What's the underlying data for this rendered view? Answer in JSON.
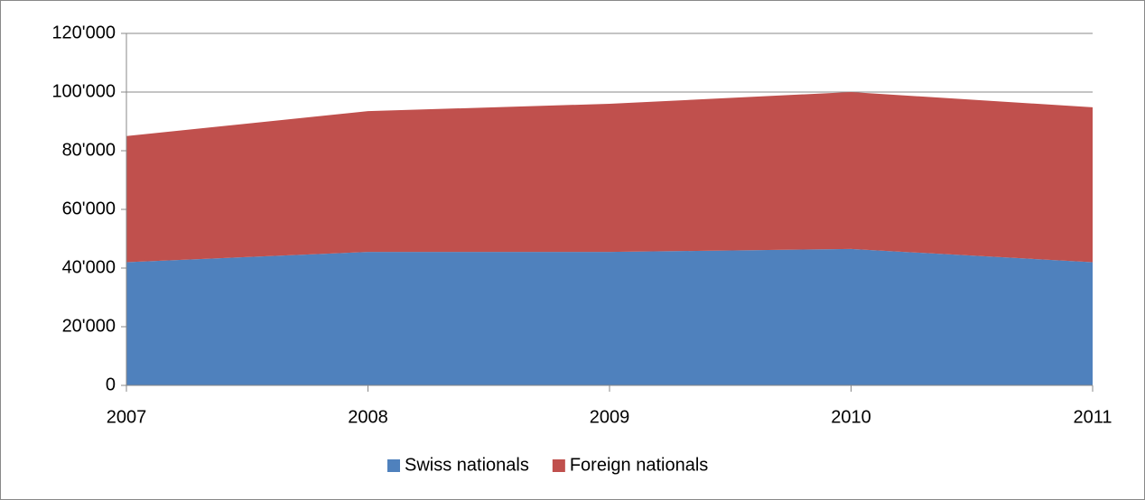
{
  "chart_data": {
    "type": "area",
    "stacked": true,
    "categories": [
      "2007",
      "2008",
      "2009",
      "2010",
      "2011"
    ],
    "series": [
      {
        "name": "Swiss nationals",
        "color": "#4f81bd",
        "values": [
          42000,
          45500,
          45500,
          46500,
          42000
        ]
      },
      {
        "name": "Foreign nationals",
        "color": "#c0504d",
        "values": [
          43000,
          48000,
          50500,
          53500,
          52800
        ]
      }
    ],
    "ylim": [
      0,
      120000
    ],
    "yticks": [
      0,
      {
        "value": 20000,
        "label": "20'000"
      },
      {
        "value": 40000,
        "label": "40'000"
      },
      {
        "value": 60000,
        "label": "60'000"
      },
      {
        "value": 80000,
        "label": "80'000"
      },
      {
        "value": 100000,
        "label": "100'000"
      },
      {
        "value": 120000,
        "label": "120'000"
      }
    ],
    "grid": true,
    "legend": "bottom"
  }
}
